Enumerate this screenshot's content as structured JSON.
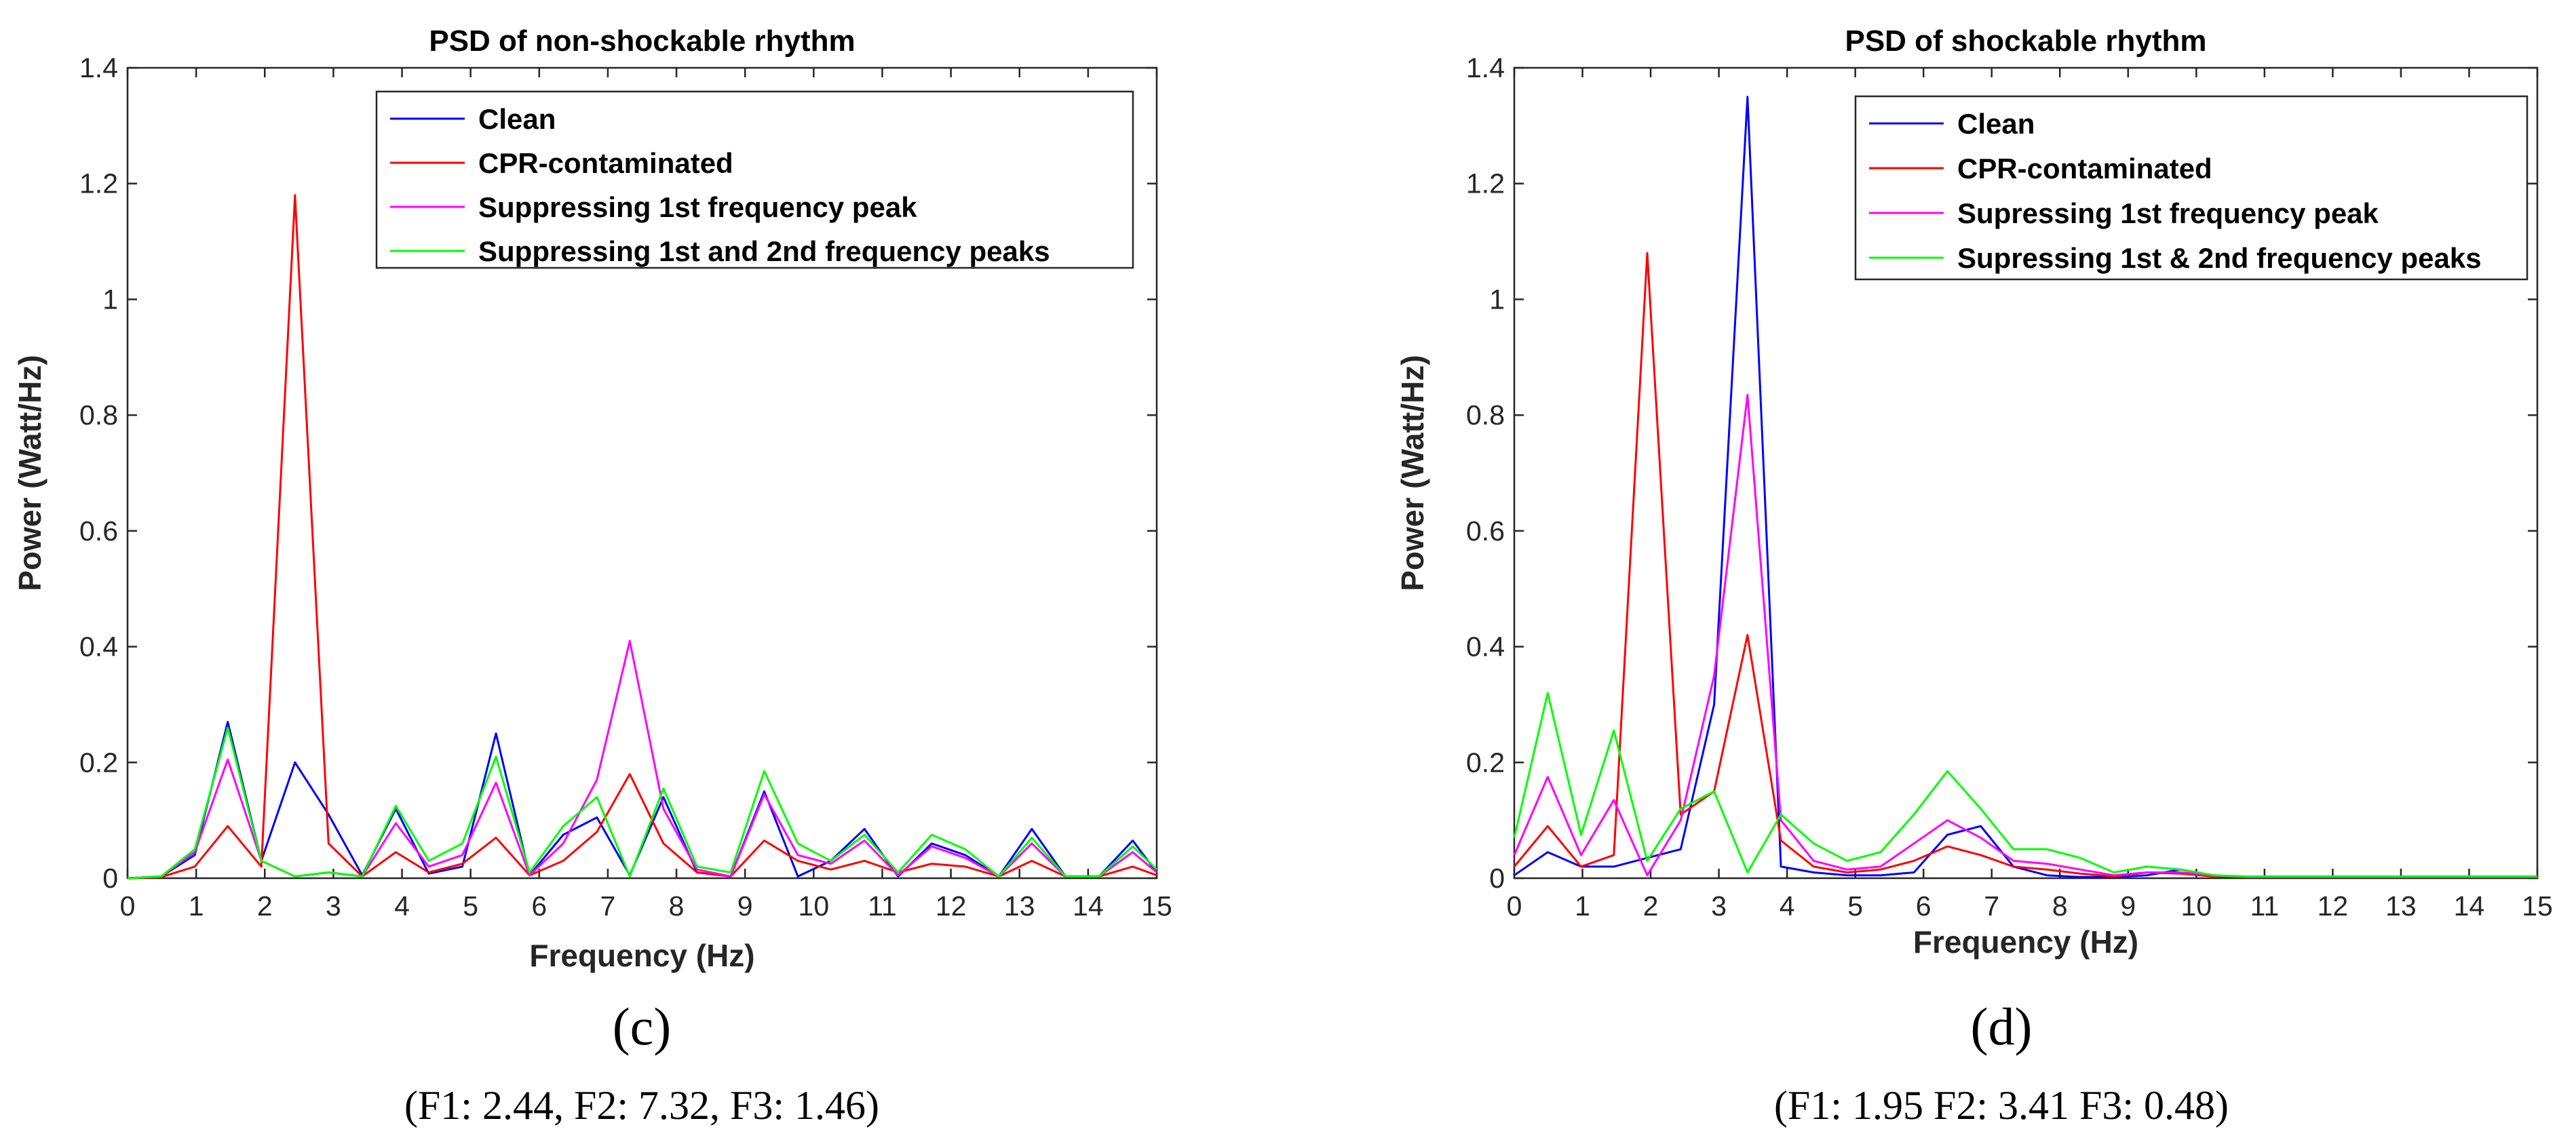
{
  "chart_data": [
    {
      "type": "line",
      "title": "PSD of non-shockable rhythm",
      "xlabel": "Frequency (Hz)",
      "ylabel": "Power (Watt/Hz)",
      "xlim": [
        0,
        15
      ],
      "ylim": [
        0,
        1.4
      ],
      "xticks": [
        "0",
        "1",
        "2",
        "3",
        "4",
        "5",
        "6",
        "7",
        "8",
        "9",
        "10",
        "11",
        "12",
        "13",
        "14",
        "15"
      ],
      "yticks": [
        "0",
        "0.2",
        "0.4",
        "0.6",
        "0.8",
        "1",
        "1.2",
        "1.4"
      ],
      "legend_position": "top-right",
      "panel_label": "(c)",
      "caption": "(F1: 2.44, F2: 7.32, F3: 1.46)",
      "x": [
        0,
        0.49,
        0.98,
        1.46,
        1.95,
        2.44,
        2.93,
        3.42,
        3.91,
        4.39,
        4.88,
        5.37,
        5.86,
        6.35,
        6.84,
        7.32,
        7.81,
        8.3,
        8.79,
        9.28,
        9.77,
        10.25,
        10.74,
        11.23,
        11.72,
        12.21,
        12.7,
        13.18,
        13.67,
        14.16,
        14.65,
        15
      ],
      "series": [
        {
          "name": "Clean",
          "color": "#0000ff",
          "values": [
            0,
            0.003,
            0.04,
            0.27,
            0.03,
            0.2,
            0.11,
            0.005,
            0.12,
            0.008,
            0.02,
            0.25,
            0.005,
            0.075,
            0.105,
            0.005,
            0.14,
            0.01,
            0.003,
            0.15,
            0.003,
            0.03,
            0.085,
            0.003,
            0.06,
            0.04,
            0.003,
            0.085,
            0.003,
            0.003,
            0.065,
            0.01
          ]
        },
        {
          "name": "CPR-contaminated",
          "color": "#ff0000",
          "values": [
            0,
            0.002,
            0.02,
            0.09,
            0.02,
            1.18,
            0.06,
            0.003,
            0.045,
            0.01,
            0.025,
            0.07,
            0.005,
            0.03,
            0.08,
            0.18,
            0.06,
            0.01,
            0.003,
            0.065,
            0.03,
            0.015,
            0.03,
            0.01,
            0.025,
            0.02,
            0.003,
            0.03,
            0.003,
            0.003,
            0.02,
            0.005
          ]
        },
        {
          "name": "Suppressing 1st frequency peak",
          "color": "#ff00ff",
          "values": [
            0,
            0.003,
            0.045,
            0.205,
            0.03,
            0.003,
            0.01,
            0.003,
            0.095,
            0.02,
            0.04,
            0.165,
            0.005,
            0.06,
            0.17,
            0.41,
            0.12,
            0.015,
            0.003,
            0.145,
            0.04,
            0.025,
            0.065,
            0.005,
            0.055,
            0.035,
            0.003,
            0.06,
            0.003,
            0.003,
            0.045,
            0.01
          ]
        },
        {
          "name": "Suppressing 1st and 2nd frequency peaks",
          "color": "#00ff00",
          "values": [
            0,
            0.003,
            0.05,
            0.26,
            0.03,
            0.003,
            0.01,
            0.003,
            0.125,
            0.03,
            0.06,
            0.21,
            0.01,
            0.09,
            0.14,
            0.003,
            0.155,
            0.02,
            0.01,
            0.185,
            0.06,
            0.03,
            0.075,
            0.01,
            0.075,
            0.05,
            0.003,
            0.07,
            0.003,
            0.003,
            0.055,
            0.015
          ]
        }
      ]
    },
    {
      "type": "line",
      "title": "PSD of shockable rhythm",
      "xlabel": "Frequency (Hz)",
      "ylabel": "Power (Watt/Hz)",
      "xlim": [
        0,
        15
      ],
      "ylim": [
        0,
        1.4
      ],
      "xticks": [
        "0",
        "1",
        "2",
        "3",
        "4",
        "5",
        "6",
        "7",
        "8",
        "9",
        "10",
        "11",
        "12",
        "13",
        "14",
        "15"
      ],
      "yticks": [
        "0",
        "0.2",
        "0.4",
        "0.6",
        "0.8",
        "1",
        "1.2",
        "1.4"
      ],
      "legend_position": "top-right",
      "panel_label": "(d)",
      "caption": "(F1: 1.95 F2: 3.41 F3: 0.48)",
      "x": [
        0,
        0.49,
        0.98,
        1.46,
        1.95,
        2.44,
        2.93,
        3.42,
        3.91,
        4.39,
        4.88,
        5.37,
        5.86,
        6.35,
        6.84,
        7.32,
        7.81,
        8.3,
        8.79,
        9.28,
        9.77,
        10.25,
        10.74,
        11.23,
        11.72,
        12.21,
        12.7,
        13.18,
        13.67,
        14.16,
        14.65,
        15
      ],
      "series": [
        {
          "name": "Clean",
          "color": "#0000ff",
          "values": [
            0.005,
            0.045,
            0.02,
            0.02,
            0.035,
            0.05,
            0.3,
            1.35,
            0.02,
            0.01,
            0.005,
            0.005,
            0.01,
            0.075,
            0.09,
            0.02,
            0.005,
            0.002,
            0.002,
            0.005,
            0.015,
            0.005,
            0.002,
            0.002,
            0.002,
            0.002,
            0.002,
            0.002,
            0.002,
            0.002,
            0.002,
            0.002
          ]
        },
        {
          "name": "CPR-contaminated",
          "color": "#ff0000",
          "values": [
            0.02,
            0.09,
            0.02,
            0.04,
            1.08,
            0.11,
            0.15,
            0.42,
            0.065,
            0.02,
            0.01,
            0.015,
            0.03,
            0.055,
            0.04,
            0.02,
            0.015,
            0.008,
            0.003,
            0.01,
            0.008,
            0.003,
            0.002,
            0.002,
            0.002,
            0.002,
            0.002,
            0.002,
            0.002,
            0.002,
            0.002,
            0.002
          ]
        },
        {
          "name": "Supressing 1st frequency peak",
          "color": "#ff00ff",
          "values": [
            0.04,
            0.175,
            0.04,
            0.135,
            0.005,
            0.1,
            0.35,
            0.835,
            0.1,
            0.03,
            0.015,
            0.02,
            0.06,
            0.1,
            0.07,
            0.03,
            0.025,
            0.015,
            0.005,
            0.01,
            0.01,
            0.005,
            0.002,
            0.002,
            0.002,
            0.002,
            0.002,
            0.002,
            0.002,
            0.002,
            0.002,
            0.002
          ]
        },
        {
          "name": "Supressing 1st & 2nd frequency peaks",
          "color": "#00ff00",
          "values": [
            0.07,
            0.32,
            0.075,
            0.255,
            0.03,
            0.12,
            0.15,
            0.01,
            0.11,
            0.06,
            0.03,
            0.045,
            0.11,
            0.185,
            0.12,
            0.05,
            0.05,
            0.035,
            0.01,
            0.02,
            0.015,
            0.005,
            0.003,
            0.003,
            0.003,
            0.003,
            0.003,
            0.003,
            0.003,
            0.003,
            0.003,
            0.003
          ]
        }
      ]
    }
  ]
}
